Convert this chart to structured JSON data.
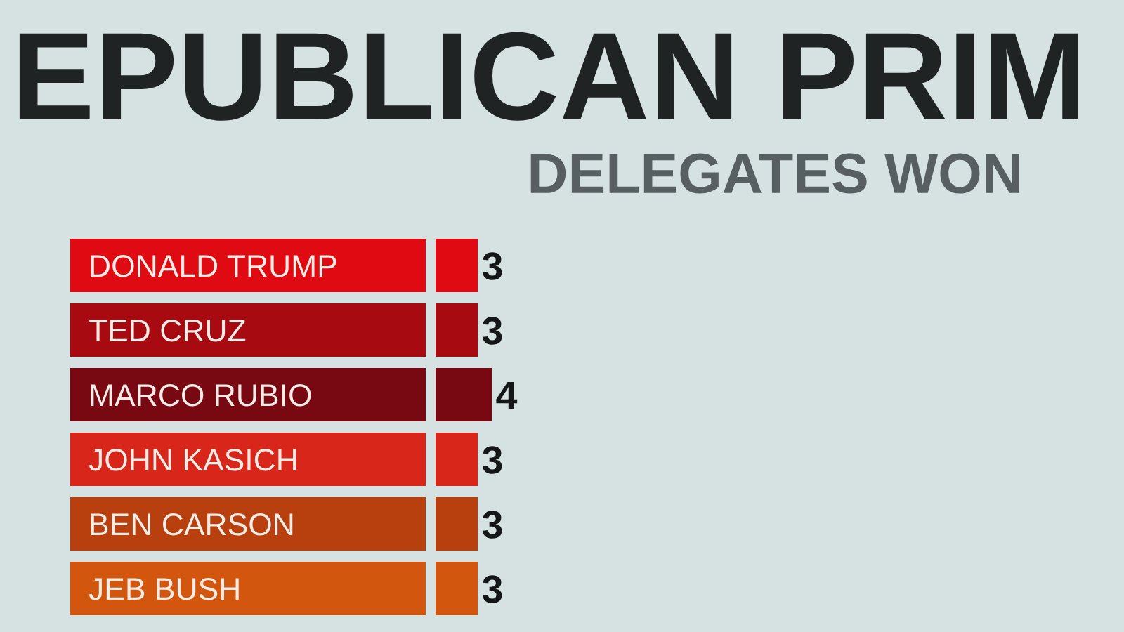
{
  "chart_data": {
    "type": "bar",
    "orientation": "horizontal",
    "title": "EPUBLICAN PRIM",
    "subtitle": "DELEGATES WON",
    "categories": [
      "DONALD TRUMP",
      "TED CRUZ",
      "MARCO RUBIO",
      "JOHN KASICH",
      "BEN CARSON",
      "JEB BUSH"
    ],
    "values": [
      3,
      3,
      4,
      3,
      3,
      3
    ],
    "colors": [
      "#e00a12",
      "#a80a12",
      "#780812",
      "#d8261a",
      "#b8400f",
      "#d2560e"
    ],
    "data_labels": true
  }
}
